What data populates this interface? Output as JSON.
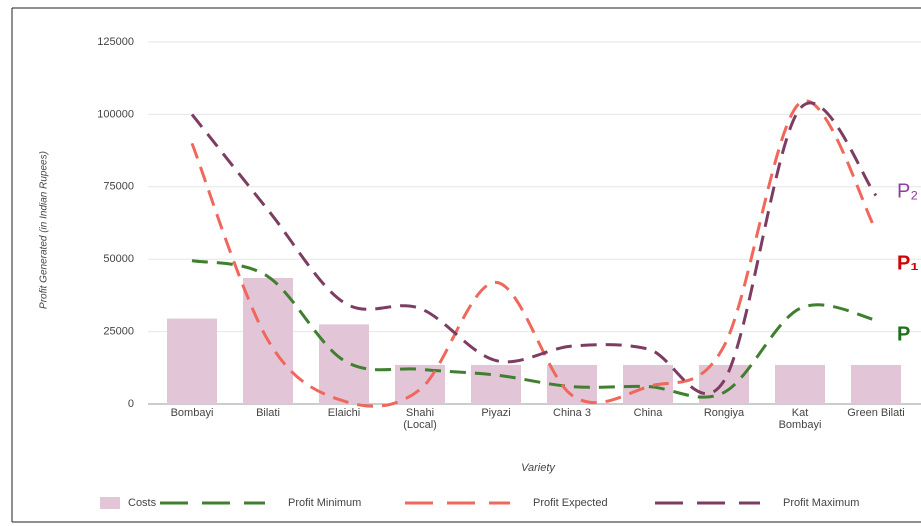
{
  "chart_data": {
    "type": "bar",
    "y_label": "Profit Generated (in Indian Rupees)",
    "x_label": "Variety",
    "categories": [
      "Bombayi",
      "Bilati",
      "Elaichi",
      "Shahi (Local)",
      "Piyazi",
      "China 3",
      "China",
      "Rongiya",
      "Kat Bombayi",
      "Green Bilati"
    ],
    "series": [
      {
        "name": "Costs",
        "type": "bar",
        "color": "#e2c6d7",
        "values": [
          29500,
          43500,
          27500,
          13500,
          13500,
          13500,
          13500,
          13500,
          13500,
          13500
        ]
      },
      {
        "name": "Profit Minimum",
        "type": "line",
        "color": "#3f7f2f",
        "values": [
          49500,
          44000,
          15000,
          12000,
          10000,
          6000,
          6000,
          4000,
          33000,
          29000
        ]
      },
      {
        "name": "Profit Expected",
        "type": "line",
        "color": "#f0675c",
        "values": [
          90000,
          22000,
          1000,
          5000,
          42000,
          3000,
          6000,
          20000,
          104000,
          60000
        ]
      },
      {
        "name": "Profit Maximum",
        "type": "line",
        "color": "#7d3d62",
        "values": [
          100000,
          67000,
          35000,
          33000,
          15000,
          20000,
          19000,
          8000,
          102000,
          72000
        ]
      }
    ],
    "annotations": [
      {
        "text": "P₂",
        "color": "#8b3f9c"
      },
      {
        "text": "P₁",
        "color": "#d40000"
      },
      {
        "text": "P",
        "color": "#1d6e1d"
      }
    ],
    "ylim": [
      0,
      125000
    ],
    "yticks": [
      0,
      25000,
      50000,
      75000,
      100000,
      125000
    ],
    "grid": true
  }
}
